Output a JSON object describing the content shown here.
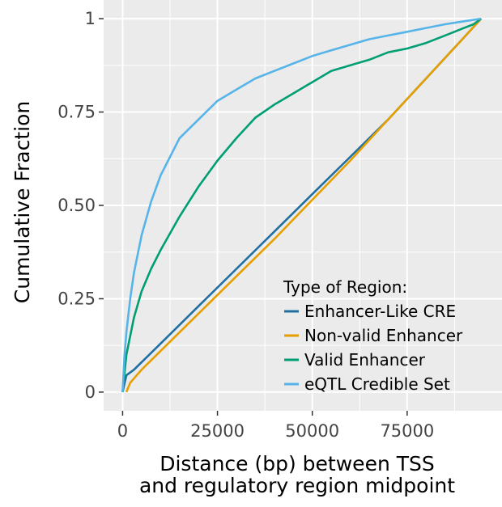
{
  "chart_data": {
    "type": "line",
    "title": "",
    "xlabel_lines": [
      "Distance (bp) between TSS",
      "and regulatory region midpoint"
    ],
    "ylabel": "Cumulative Fraction",
    "xlim": [
      -5000,
      100000
    ],
    "ylim": [
      -0.05,
      1.05
    ],
    "x_ticks": [
      0,
      25000,
      50000,
      75000
    ],
    "x_tick_labels": [
      "0",
      "25000",
      "50000",
      "75000"
    ],
    "y_ticks": [
      0,
      0.25,
      0.5,
      0.75,
      1
    ],
    "y_tick_labels": [
      "0",
      "0.25",
      "0.50",
      "0.75",
      "1"
    ],
    "grid": true,
    "legend": {
      "title": "Type of Region:",
      "placement": "bottom-right"
    },
    "series": [
      {
        "name": "Enhancer-Like CRE",
        "color": "#1f6fa3",
        "x": [
          0,
          1000,
          3000,
          10000,
          20000,
          30000,
          40000,
          50000,
          60000,
          70000,
          80000,
          90000,
          94500
        ],
        "y": [
          0,
          0.045,
          0.06,
          0.13,
          0.23,
          0.33,
          0.43,
          0.53,
          0.63,
          0.73,
          0.84,
          0.95,
          1.0
        ]
      },
      {
        "name": "Non-valid Enhancer",
        "color": "#e69f00",
        "x": [
          1000,
          2000,
          5000,
          10000,
          20000,
          30000,
          40000,
          50000,
          60000,
          70000,
          80000,
          90000,
          94500
        ],
        "y": [
          0,
          0.025,
          0.06,
          0.11,
          0.21,
          0.31,
          0.41,
          0.515,
          0.62,
          0.73,
          0.84,
          0.95,
          1.0
        ]
      },
      {
        "name": "Valid Enhancer",
        "color": "#009e73",
        "x": [
          0,
          1000,
          2000,
          3000,
          5000,
          7500,
          10000,
          15000,
          20000,
          25000,
          30000,
          35000,
          40000,
          45000,
          50000,
          55000,
          60000,
          65000,
          70000,
          75000,
          80000,
          85000,
          90000,
          92500,
          94500
        ],
        "y": [
          0,
          0.1,
          0.15,
          0.2,
          0.27,
          0.33,
          0.38,
          0.47,
          0.55,
          0.62,
          0.68,
          0.735,
          0.77,
          0.8,
          0.83,
          0.86,
          0.875,
          0.89,
          0.91,
          0.92,
          0.935,
          0.955,
          0.975,
          0.985,
          1.0
        ]
      },
      {
        "name": "eQTL Credible Set",
        "color": "#56b4e9",
        "x": [
          0,
          500,
          1000,
          2000,
          3000,
          5000,
          7500,
          10000,
          12500,
          15000,
          20000,
          25000,
          30000,
          35000,
          40000,
          45000,
          50000,
          55000,
          60000,
          65000,
          70000,
          75000,
          80000,
          85000,
          90000,
          94500
        ],
        "y": [
          0,
          0.1,
          0.16,
          0.25,
          0.32,
          0.42,
          0.51,
          0.58,
          0.63,
          0.68,
          0.73,
          0.78,
          0.81,
          0.84,
          0.86,
          0.88,
          0.9,
          0.915,
          0.93,
          0.945,
          0.955,
          0.965,
          0.975,
          0.985,
          0.993,
          1.0
        ]
      }
    ]
  }
}
